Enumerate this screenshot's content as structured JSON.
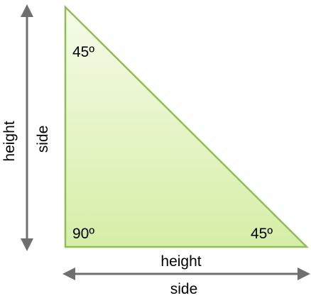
{
  "angles": {
    "top": "45º",
    "right_angle": "90º",
    "bottom_right": "45º"
  },
  "labels": {
    "left_side": "side",
    "left_outer": "height",
    "bottom_side": "height",
    "bottom_outer": "side"
  },
  "colors": {
    "fill_top": "#f6fbe9",
    "fill_bottom": "#d6eea7",
    "stroke": "#8fbf52",
    "arrow": "#6f6f6f"
  }
}
